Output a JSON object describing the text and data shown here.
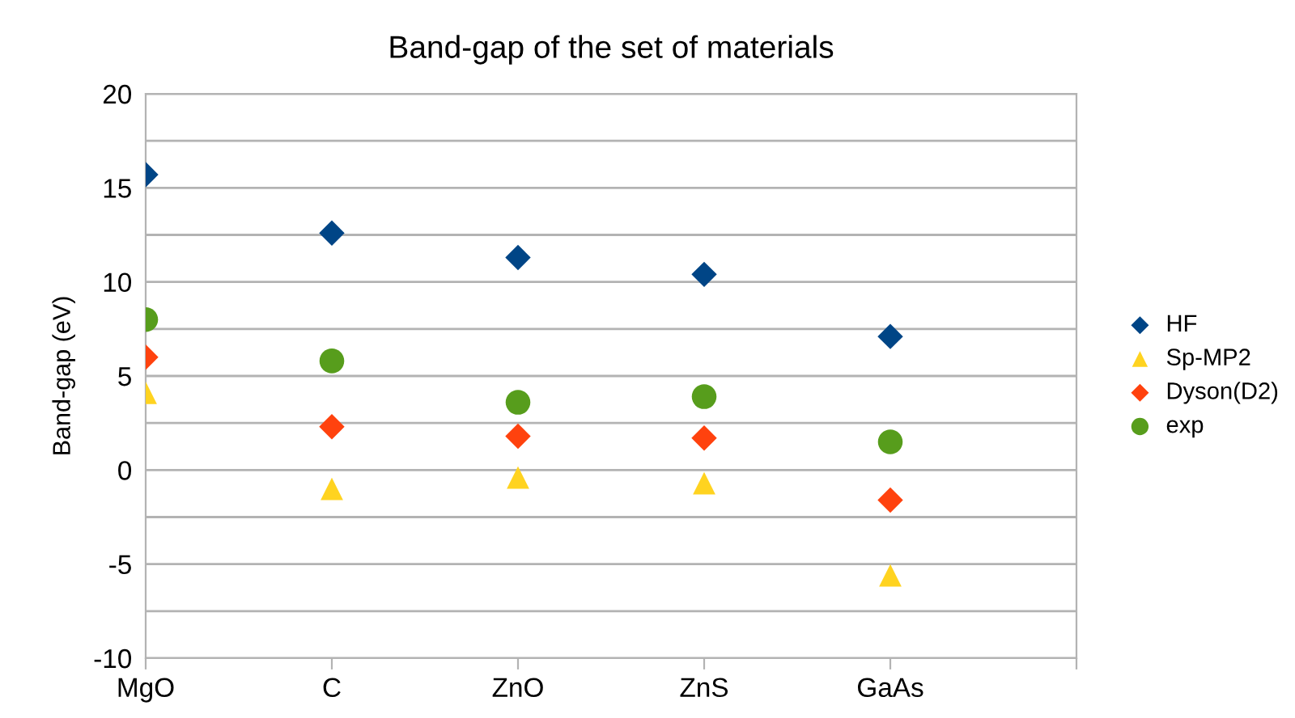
{
  "chart_data": {
    "type": "scatter",
    "title": "Band-gap of the set of materials",
    "ylabel": "Band-gap (eV)",
    "categories": [
      "MgO",
      "C",
      "ZnO",
      "ZnS",
      "GaAs"
    ],
    "series": [
      {
        "name": "HF",
        "color": "#004586",
        "marker": "diamond",
        "values": [
          15.7,
          12.6,
          11.3,
          10.4,
          7.1
        ]
      },
      {
        "name": "Sp-MP2",
        "color": "#ffd320",
        "marker": "triangle",
        "values": [
          4.1,
          -1.0,
          -0.4,
          -0.7,
          -5.6
        ]
      },
      {
        "name": "Dyson(D2)",
        "color": "#ff420e",
        "marker": "diamond",
        "values": [
          6.0,
          2.3,
          1.8,
          1.7,
          -1.6
        ]
      },
      {
        "name": "exp",
        "color": "#579d1c",
        "marker": "circle",
        "values": [
          8.0,
          5.8,
          3.6,
          3.9,
          1.5
        ]
      }
    ],
    "ylim": [
      -10,
      20
    ],
    "yticks": [
      -10,
      {
        "value": -7.5,
        "label": null
      },
      -5,
      {
        "value": -2.5,
        "label": null
      },
      0,
      {
        "value": 2.5,
        "label": null
      },
      5,
      {
        "value": 7.5,
        "label": null
      },
      10,
      {
        "value": 12.5,
        "label": null
      },
      15,
      {
        "value": 17.5,
        "label": null
      },
      20
    ],
    "grid": "y",
    "legend": "right"
  }
}
